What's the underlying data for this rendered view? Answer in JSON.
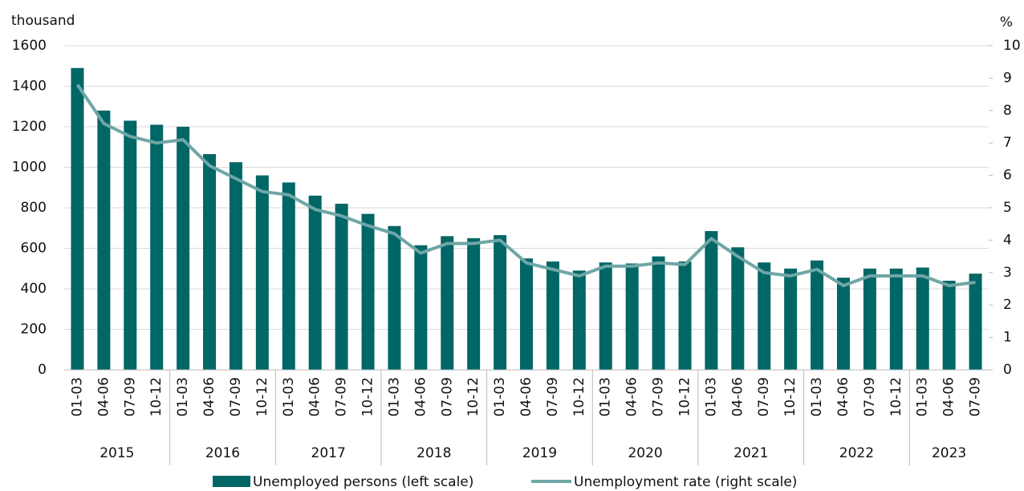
{
  "chart_data": {
    "type": "bar-line",
    "y_label": "thousand",
    "y2_label": "%",
    "groups": [
      {
        "label": "2015",
        "categories": [
          "01-03",
          "04-06",
          "07-09",
          "10-12"
        ]
      },
      {
        "label": "2016",
        "categories": [
          "01-03",
          "04-06",
          "07-09",
          "10-12"
        ]
      },
      {
        "label": "2017",
        "categories": [
          "01-03",
          "04-06",
          "07-09",
          "10-12"
        ]
      },
      {
        "label": "2018",
        "categories": [
          "01-03",
          "04-06",
          "07-09",
          "10-12"
        ]
      },
      {
        "label": "2019",
        "categories": [
          "01-03",
          "04-06",
          "07-09",
          "10-12"
        ]
      },
      {
        "label": "2020",
        "categories": [
          "01-03",
          "04-06",
          "07-09",
          "10-12"
        ]
      },
      {
        "label": "2021",
        "categories": [
          "01-03",
          "04-06",
          "07-09",
          "10-12"
        ]
      },
      {
        "label": "2022",
        "categories": [
          "01-03",
          "04-06",
          "07-09",
          "10-12"
        ]
      },
      {
        "label": "2023",
        "categories": [
          "01-03",
          "04-06",
          "07-09"
        ]
      }
    ],
    "series": [
      {
        "name": "Unemployed persons (left scale)",
        "type": "bar",
        "axis": "y",
        "color": "#006666",
        "values": [
          1490,
          1280,
          1230,
          1210,
          1200,
          1065,
          1025,
          960,
          925,
          860,
          820,
          770,
          710,
          615,
          660,
          650,
          665,
          550,
          535,
          490,
          530,
          525,
          560,
          535,
          685,
          605,
          530,
          500,
          540,
          455,
          500,
          500,
          505,
          440,
          475
        ]
      },
      {
        "name": "Unemployment rate (right scale)",
        "type": "line",
        "axis": "y2",
        "color": "#6fa6a6",
        "values": [
          8.8,
          7.6,
          7.2,
          7.0,
          7.1,
          6.3,
          5.9,
          5.5,
          5.4,
          4.95,
          4.75,
          4.45,
          4.2,
          3.6,
          3.9,
          3.9,
          4.0,
          3.3,
          3.1,
          2.9,
          3.2,
          3.2,
          3.3,
          3.25,
          4.05,
          3.5,
          3.0,
          2.9,
          3.1,
          2.6,
          2.9,
          2.9,
          2.9,
          2.6,
          2.7
        ]
      }
    ],
    "ylim": [
      0,
      1600
    ],
    "yticks": [
      0,
      200,
      400,
      600,
      800,
      1000,
      1200,
      1400,
      1600
    ],
    "y2lim": [
      0,
      10
    ],
    "y2ticks": [
      0,
      1,
      2,
      3,
      4,
      5,
      6,
      7,
      8,
      9,
      10
    ],
    "grid": true
  }
}
